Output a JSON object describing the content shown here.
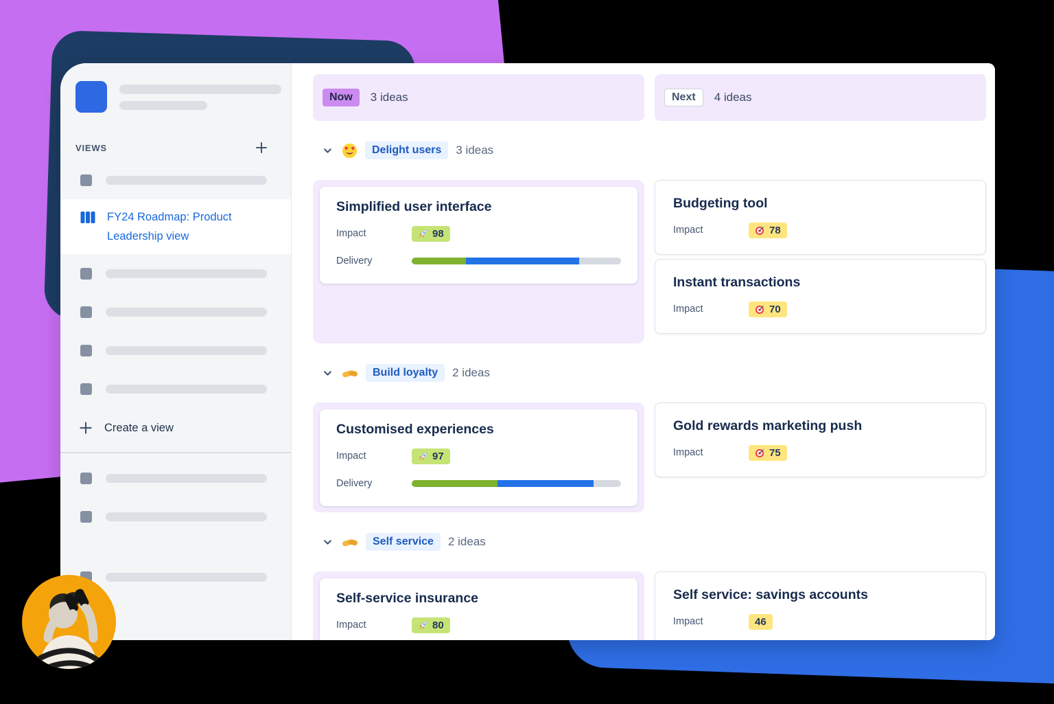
{
  "sidebar": {
    "views_label": "VIEWS",
    "active_view": {
      "line1": "FY24 Roadmap: Product",
      "line2": "Leadership view"
    },
    "create_view_label": "Create a view"
  },
  "columns": [
    {
      "badge": "Now",
      "count": "3 ideas"
    },
    {
      "badge": "Next",
      "count": "4 ideas"
    }
  ],
  "sections": [
    {
      "icon": "heart-eyes-emoji",
      "label": "Delight users",
      "count": "3 ideas",
      "now_cards": [
        {
          "title": "Simplified user interface",
          "impact_label": "Impact",
          "impact_icon": "rocket",
          "impact_value": "98",
          "impact_badge": "green",
          "delivery_label": "Delivery",
          "delivery": {
            "green_pct": 26,
            "blue_pct": 54
          }
        }
      ],
      "next_cards": [
        {
          "title": "Budgeting tool",
          "impact_label": "Impact",
          "impact_icon": "target",
          "impact_value": "78",
          "impact_badge": "yellow"
        },
        {
          "title": "Instant transactions",
          "impact_label": "Impact",
          "impact_icon": "target",
          "impact_value": "70",
          "impact_badge": "yellow"
        }
      ]
    },
    {
      "icon": "handshake-emoji",
      "label": "Build loyalty",
      "count": "2 ideas",
      "now_cards": [
        {
          "title": "Customised experiences",
          "impact_label": "Impact",
          "impact_icon": "rocket",
          "impact_value": "97",
          "impact_badge": "green",
          "delivery_label": "Delivery",
          "delivery": {
            "green_pct": 41,
            "blue_pct": 46
          }
        }
      ],
      "next_cards": [
        {
          "title": "Gold rewards marketing push",
          "impact_label": "Impact",
          "impact_icon": "target",
          "impact_value": "75",
          "impact_badge": "yellow"
        }
      ]
    },
    {
      "icon": "handshake-emoji",
      "label": "Self service",
      "count": "2 ideas",
      "now_cards": [
        {
          "title": "Self-service insurance",
          "impact_label": "Impact",
          "impact_icon": "rocket",
          "impact_value": "80",
          "impact_badge": "green"
        }
      ],
      "next_cards": [
        {
          "title": "Self service: savings accounts",
          "impact_label": "Impact",
          "impact_icon": "none",
          "impact_value": "46",
          "impact_badge": "yellow"
        }
      ]
    }
  ],
  "colors": {
    "background_purple": "#c66ef2",
    "background_blue": "#2e6de4",
    "background_navy": "#1d3c63",
    "avatar_orange": "#f5a30b",
    "column_header_purple": "#f2e9fd",
    "now_badge_purple": "#cb8bf0",
    "now_group_purple": "#f3eafd",
    "chip_blue_bg": "#e9f2ff",
    "chip_blue_text": "#1d5bbf",
    "impact_green": "#c6e476",
    "impact_yellow": "#ffe57f",
    "progress_green": "#7fb22f",
    "progress_blue": "#2272e8",
    "brand_blue": "#1868db"
  }
}
